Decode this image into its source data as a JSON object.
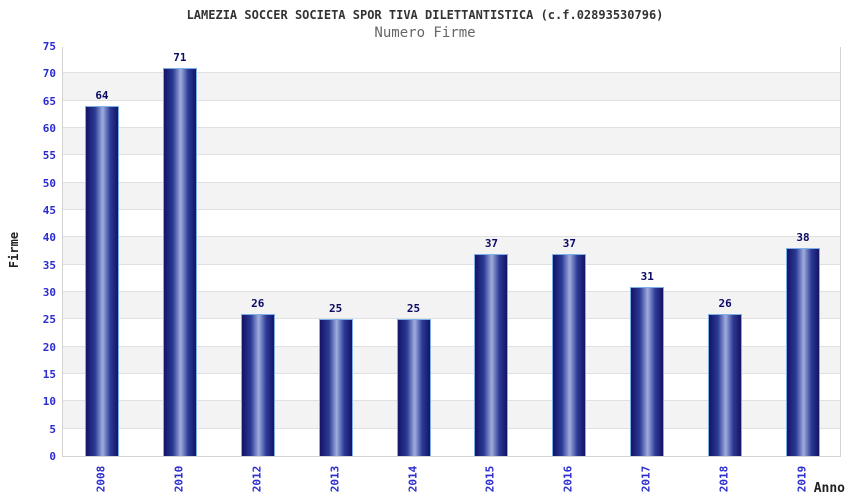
{
  "chart_data": {
    "type": "bar",
    "title": "LAMEZIA SOCCER SOCIETA SPOR TIVA DILETTANTISTICA (c.f.02893530796)",
    "subtitle": "Numero Firme",
    "categories": [
      "2008",
      "2010",
      "2012",
      "2013",
      "2014",
      "2015",
      "2016",
      "2017",
      "2018",
      "2019"
    ],
    "values": [
      64,
      71,
      26,
      25,
      25,
      37,
      37,
      31,
      26,
      38
    ],
    "xlabel": "Anno",
    "ylabel": "Firme",
    "ylim": [
      0,
      75
    ],
    "ytick_step": 5,
    "yticks": [
      0,
      5,
      10,
      15,
      20,
      25,
      30,
      35,
      40,
      45,
      50,
      55,
      60,
      65,
      70,
      75
    ],
    "grid": true,
    "legend_position": "none",
    "colors": {
      "tick_label": "#2b2bd0",
      "value_label": "#0b0b66",
      "title": "#333333",
      "subtitle": "#666666",
      "axis_label": "#222222",
      "band_main": "#ffffff",
      "band_alt": "#f3f3f3",
      "gridline": "#e0e0e0",
      "plot_border": "#d3d3d3",
      "bar_border": "#7cb0e6",
      "bar_dark": "#141466",
      "bar_mid": "#2b3a95",
      "bar_light": "#9fadde"
    }
  }
}
